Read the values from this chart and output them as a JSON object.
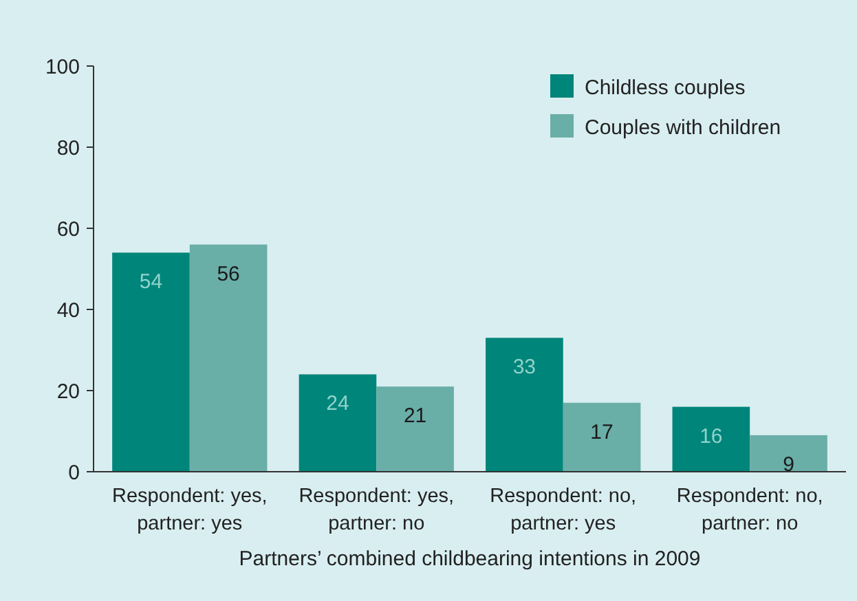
{
  "chart_data": {
    "type": "bar",
    "xlabel": "Partners’ combined childbearing intentions in 2009",
    "categories": [
      "Respondent: yes, partner: yes",
      "Respondent: yes, partner: no",
      "Respondent: no, partner: yes",
      "Respondent: no, partner: no"
    ],
    "series": [
      {
        "name": "Childless couples",
        "color": "#00857a",
        "values": [
          54,
          24,
          33,
          16
        ]
      },
      {
        "name": "Couples with children",
        "color": "#6aaea8",
        "values": [
          56,
          21,
          17,
          9
        ]
      }
    ],
    "ylim": [
      0,
      100
    ],
    "yticks": [
      0,
      20,
      40,
      60,
      80,
      100
    ],
    "data_labels": true,
    "legend": "top right",
    "grid": false
  }
}
